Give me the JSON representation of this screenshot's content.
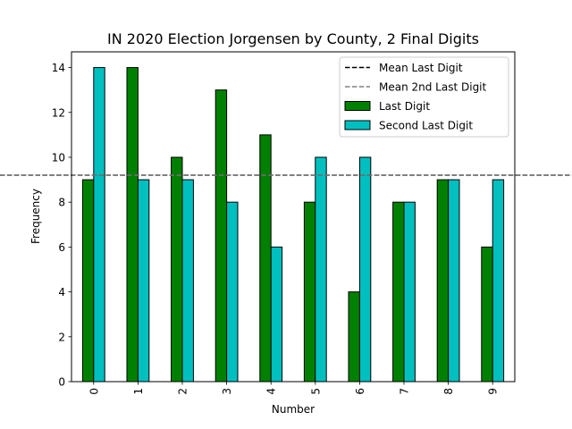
{
  "chart_data": {
    "type": "bar",
    "title": "IN 2020 Election Jorgensen by County, 2 Final Digits",
    "xlabel": "Number",
    "ylabel": "Frequency",
    "categories": [
      "0",
      "1",
      "2",
      "3",
      "4",
      "5",
      "6",
      "7",
      "8",
      "9"
    ],
    "series": [
      {
        "name": "Last Digit",
        "values": [
          9,
          14,
          10,
          13,
          11,
          8,
          4,
          8,
          9,
          6
        ],
        "color": "#008000"
      },
      {
        "name": "Second Last Digit",
        "values": [
          14,
          9,
          9,
          8,
          6,
          10,
          10,
          8,
          9,
          9
        ],
        "color": "#00bfbf"
      }
    ],
    "reference_lines": [
      {
        "name": "Mean Last Digit",
        "value": 9.2,
        "color": "#000000",
        "style": "dashed"
      },
      {
        "name": "Mean 2nd Last Digit",
        "value": 9.2,
        "color": "#808080",
        "style": "dashed"
      }
    ],
    "yticks": [
      0,
      2,
      4,
      6,
      8,
      10,
      12,
      14
    ],
    "ylim": [
      0,
      14.7
    ],
    "grid": false,
    "legend_position": "top-right"
  }
}
